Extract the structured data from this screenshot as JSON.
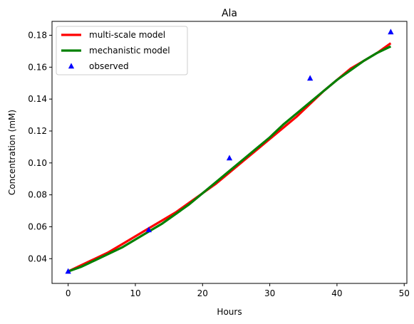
{
  "chart_data": {
    "type": "line",
    "title": "Ala",
    "xlabel": "Hours",
    "ylabel": "Concentration (mM)",
    "xlim": [
      -2.4,
      50.4
    ],
    "ylim": [
      0.0245,
      0.1887
    ],
    "xticks": [
      0,
      10,
      20,
      30,
      40,
      50
    ],
    "xtick_labels": [
      "0",
      "10",
      "20",
      "30",
      "40",
      "50"
    ],
    "yticks": [
      0.04,
      0.06,
      0.08,
      0.1,
      0.12,
      0.14,
      0.16,
      0.18
    ],
    "ytick_labels": [
      "0.04",
      "0.06",
      "0.08",
      "0.10",
      "0.12",
      "0.14",
      "0.16",
      "0.18"
    ],
    "grid": false,
    "legend_position": "upper-left",
    "series": [
      {
        "name": "multi-scale model",
        "kind": "line",
        "color": "#ff0000",
        "x": [
          0,
          2,
          4,
          6,
          8,
          10,
          12,
          14,
          16,
          18,
          20,
          22,
          24,
          26,
          28,
          30,
          32,
          34,
          36,
          38,
          40,
          42,
          44,
          46,
          48
        ],
        "y": [
          0.032,
          0.036,
          0.04,
          0.044,
          0.049,
          0.054,
          0.059,
          0.064,
          0.069,
          0.075,
          0.081,
          0.087,
          0.094,
          0.101,
          0.108,
          0.115,
          0.122,
          0.129,
          0.137,
          0.145,
          0.152,
          0.159,
          0.164,
          0.169,
          0.175
        ]
      },
      {
        "name": "mechanistic model",
        "kind": "line",
        "color": "#008000",
        "x": [
          0,
          2,
          4,
          6,
          8,
          10,
          12,
          14,
          16,
          18,
          20,
          22,
          24,
          26,
          28,
          30,
          32,
          34,
          36,
          38,
          40,
          42,
          44,
          46,
          48
        ],
        "y": [
          0.032,
          0.035,
          0.039,
          0.043,
          0.047,
          0.052,
          0.057,
          0.062,
          0.068,
          0.074,
          0.081,
          0.088,
          0.095,
          0.102,
          0.109,
          0.116,
          0.124,
          0.131,
          0.138,
          0.145,
          0.152,
          0.158,
          0.164,
          0.169,
          0.173
        ]
      },
      {
        "name": "observed",
        "kind": "scatter",
        "marker": "triangle",
        "color": "#0000ff",
        "x": [
          0,
          12,
          24,
          36,
          48
        ],
        "y": [
          0.032,
          0.058,
          0.103,
          0.153,
          0.182
        ]
      }
    ]
  }
}
